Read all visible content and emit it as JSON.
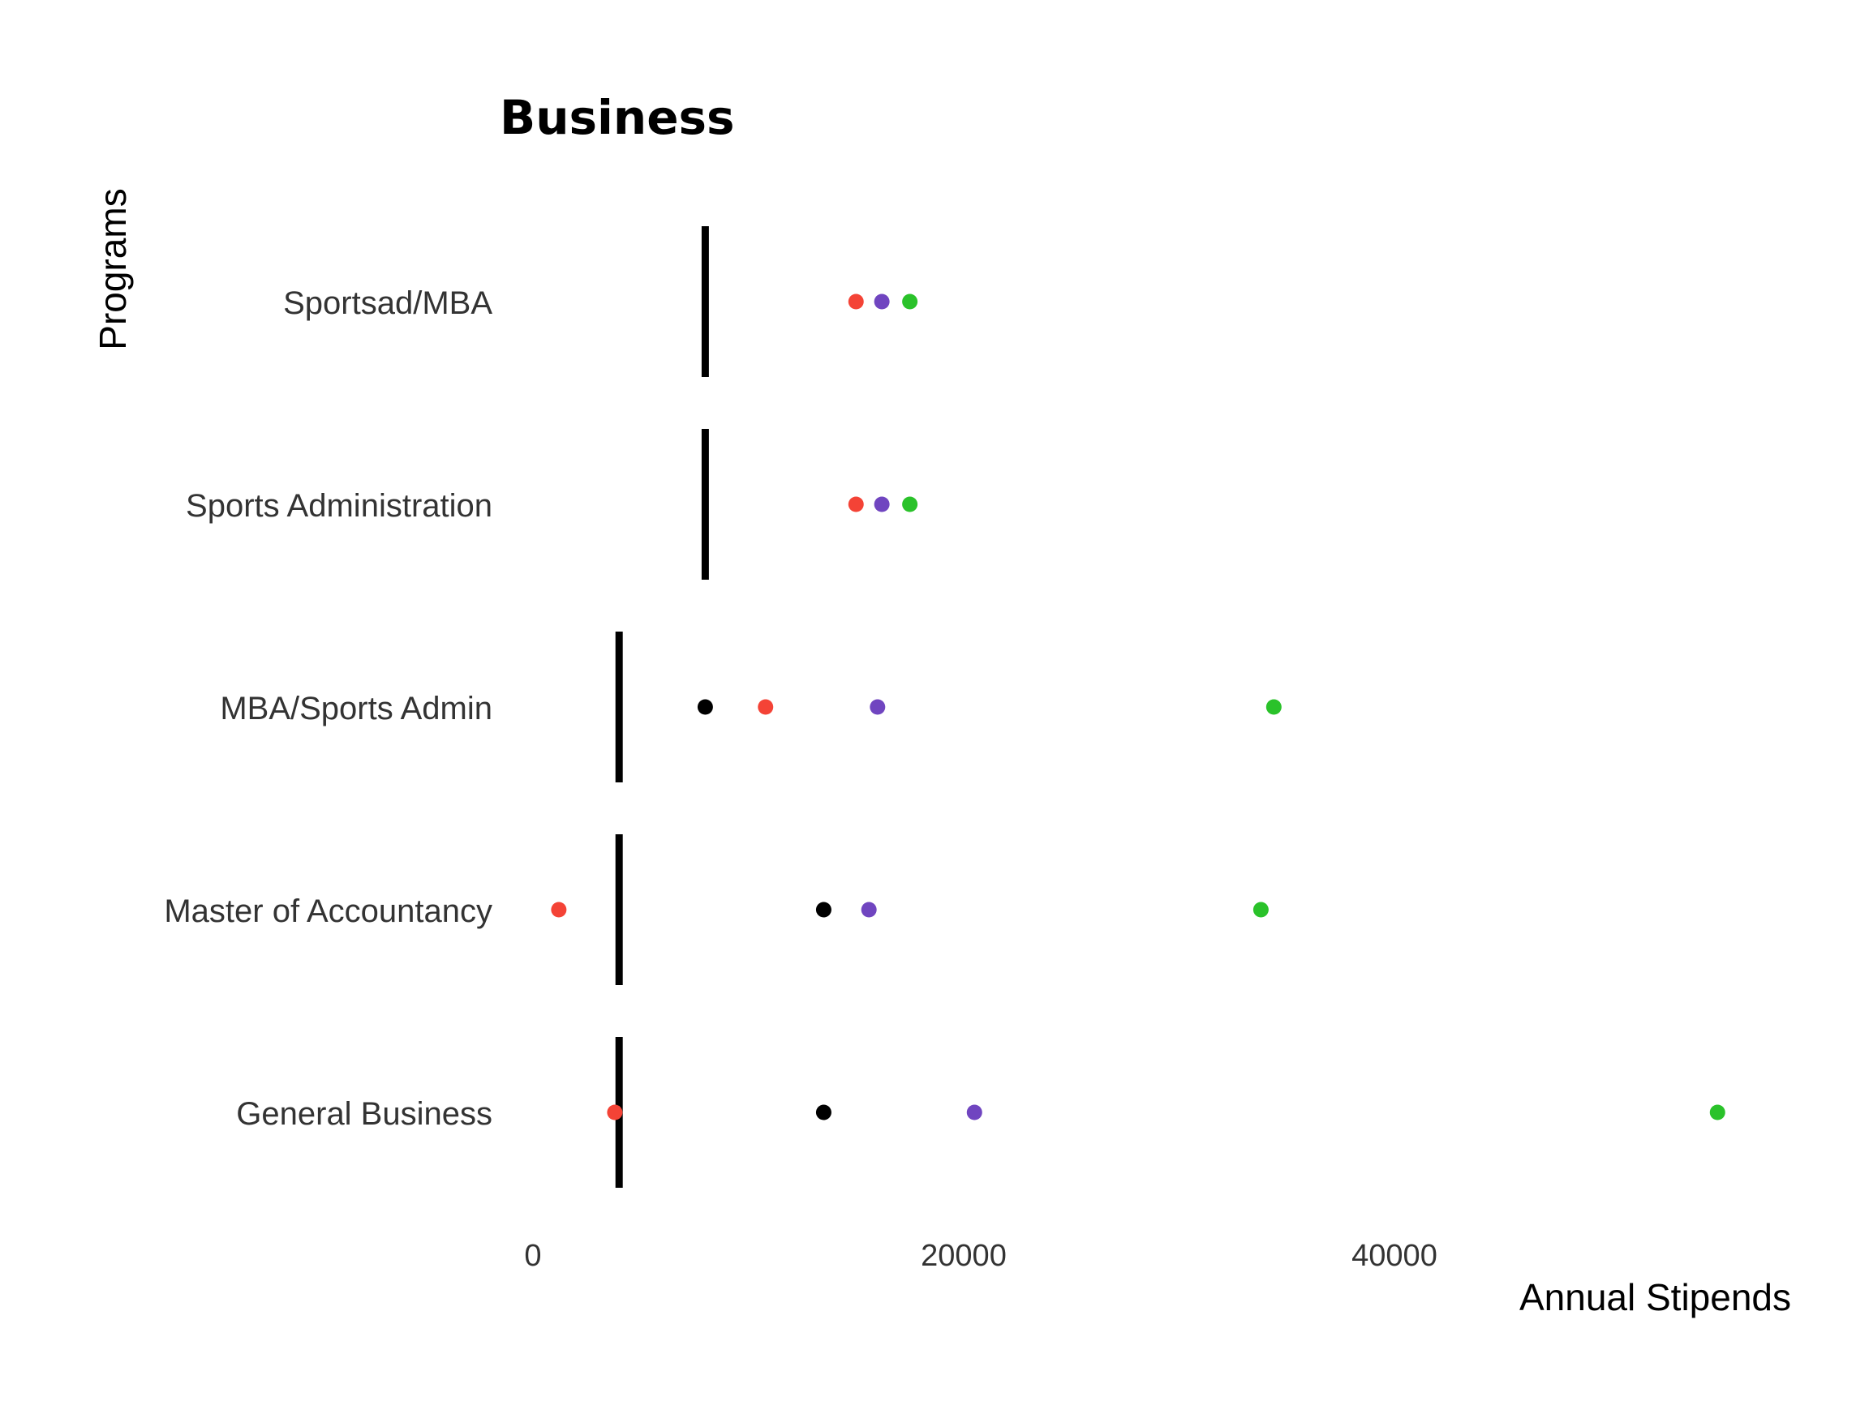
{
  "chart_data": {
    "type": "scatter",
    "title": "Business",
    "xlabel": "Annual Stipends",
    "ylabel": "Programs",
    "xlim": [
      -2000,
      58000
    ],
    "xticks": [
      0,
      20000,
      40000
    ],
    "tick_labels": [
      "0",
      "20000",
      "40000"
    ],
    "grid": false,
    "legend": "none",
    "categories": [
      "Sportsad/MBA",
      "Sports Administration",
      "MBA/Sports Admin",
      "Master of Accountancy",
      "General Business"
    ],
    "reference_lines": [
      8000,
      8000,
      4000,
      4000,
      4000
    ],
    "reference_color": "#000000",
    "series": [
      {
        "color": "#000000",
        "values": [
          null,
          null,
          8000,
          13500,
          13500
        ]
      },
      {
        "color": "#f44336",
        "values": [
          15000,
          15000,
          10800,
          1200,
          3800
        ]
      },
      {
        "color": "#7045c0",
        "values": [
          16200,
          16200,
          16000,
          15600,
          20500
        ]
      },
      {
        "color": "#2ac22a",
        "values": [
          17500,
          17500,
          34400,
          33800,
          55000
        ]
      }
    ]
  }
}
